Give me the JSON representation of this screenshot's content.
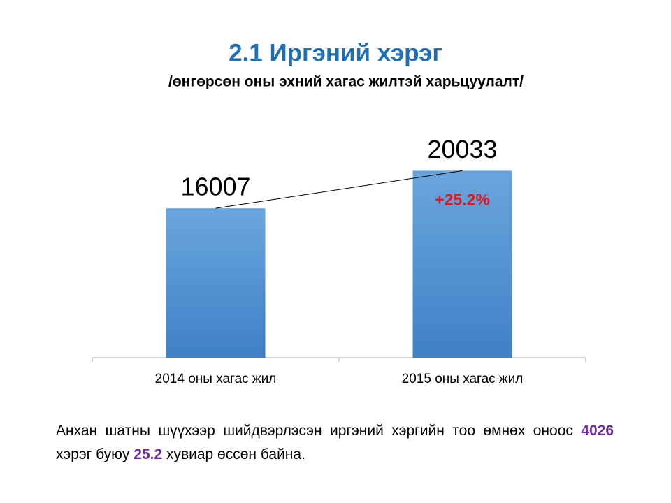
{
  "chart_data": {
    "type": "bar",
    "title": "2.1 Иргэний хэрэг",
    "subtitle": "/өнгөрсөн оны эхний хагас жилтэй харьцуулалт/",
    "categories": [
      "2014 оны хагас жил",
      "2015 оны хагас жил"
    ],
    "values": [
      16007,
      20033
    ],
    "ylim": [
      0,
      25000
    ],
    "annotation": "+25.2%",
    "color": "#4a8fd4"
  },
  "summary": {
    "parts": [
      "Анхан шатны шүүхээр шийдвэрлэсэн иргэний хэргийн тоо өмнөх оноос ",
      "4026",
      " хэрэг буюу ",
      "25.2",
      " хувиар өссөн байна."
    ]
  }
}
